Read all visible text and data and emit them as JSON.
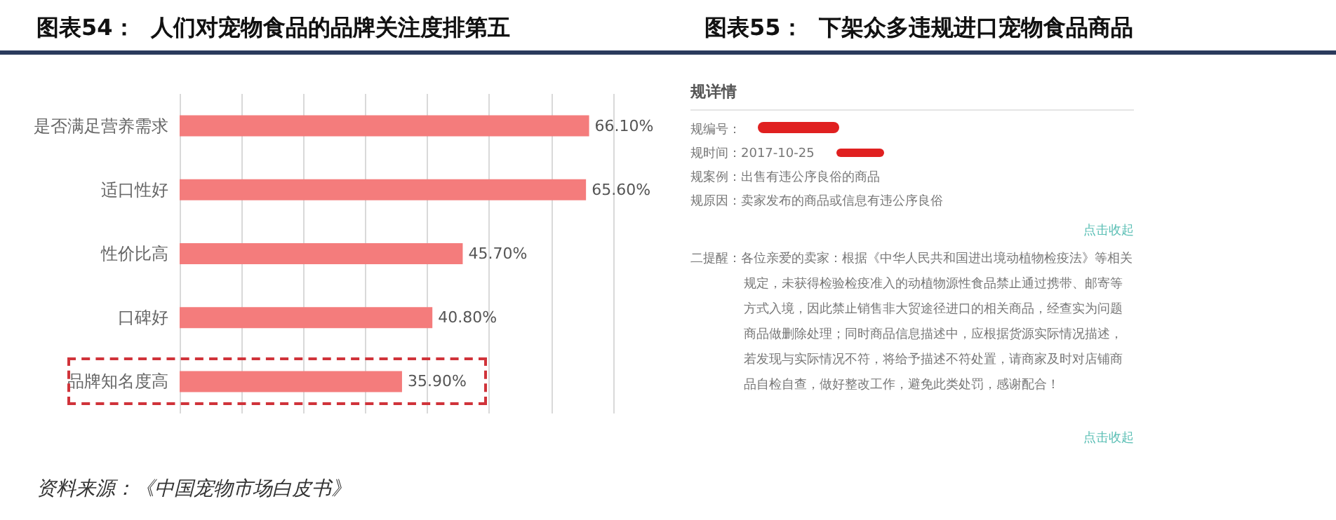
{
  "chart_data": [
    {
      "type": "bar",
      "orientation": "horizontal",
      "title": "图表54：  人们对宠物食品的品牌关注度排第五",
      "categories": [
        "是否满足营养需求",
        "适口性好",
        "性价比高",
        "口碑好",
        "品牌知名度高"
      ],
      "values": [
        66.1,
        65.6,
        45.7,
        40.8,
        35.9
      ],
      "value_labels": [
        "66.10%",
        "65.60%",
        "45.70%",
        "40.80%",
        "35.90%"
      ],
      "color": "#f47c7c",
      "xlim": [
        0,
        70
      ],
      "xticks": [
        {
          "value": 0,
          "label": null
        },
        {
          "value": 10,
          "label": null
        },
        {
          "value": 20,
          "label": null
        },
        {
          "value": 30,
          "label": null
        },
        {
          "value": 40,
          "label": null
        },
        {
          "value": 50,
          "label": null
        },
        {
          "value": 60,
          "label": null
        },
        {
          "value": 70,
          "label": null
        }
      ],
      "grid": "x",
      "tick_labels": "y",
      "annotations": [
        "资料来源：《中国宠物市场白皮书》"
      ]
    },
    {
      "type": "other",
      "title": "图表55：  下架众多违规进口宠物食品商品",
      "annotations": [
        "规详情",
        "规编号：",
        "规时间：2017-10-25",
        "规案例：出售有违公序良俗的商品",
        "规原因：卖家发布的商品或信息有违公序良俗",
        "点击收起",
        "二提醒：各位亲爱的卖家：根据《中华人民共和国进出境动植物检疫法》等相关规定，未获得检验检疫准入的动植物源性食品禁止通过携带、邮寄等方式入境，因此禁止销售非大贸途径进口的相关商品，经查实为问题商品做删除处理；同时商品信息描述中，应根据货源实际情况描述，若发现与实际情况不符，将给予描述不符处置，请商家及时对店铺商品自检自查，做好整改工作，避免此类处罚，感谢配合！",
        "点击收起"
      ]
    }
  ]
}
